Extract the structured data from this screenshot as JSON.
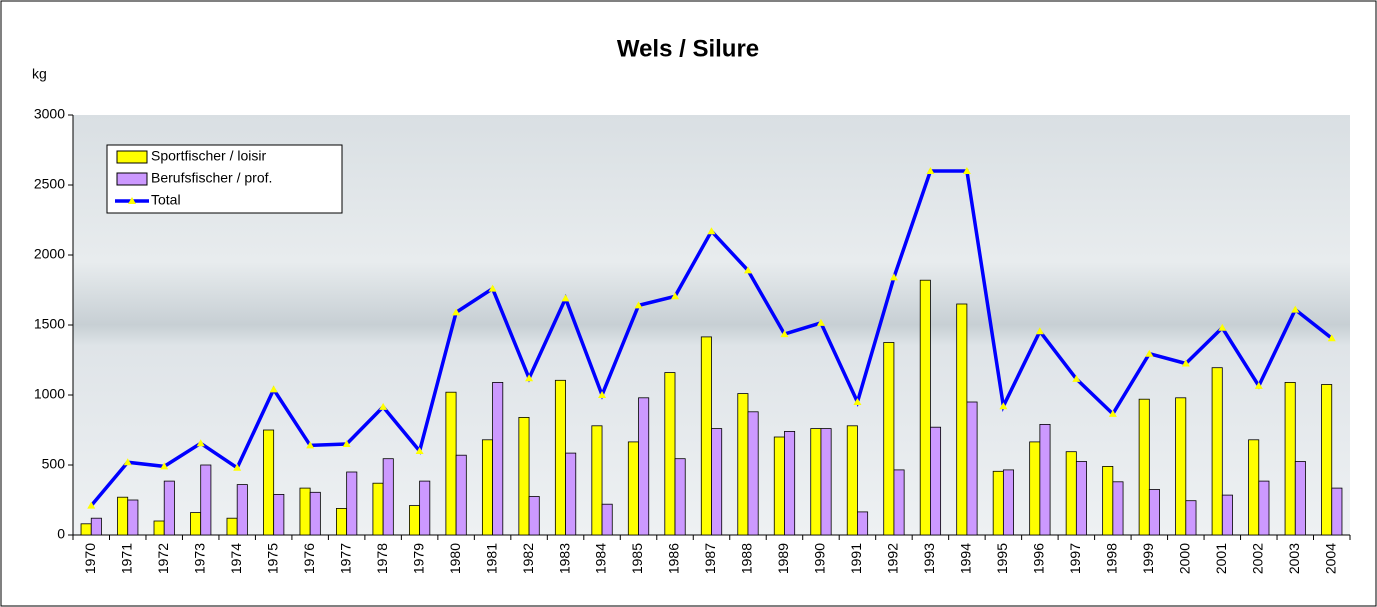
{
  "chart_data": {
    "type": "bar",
    "title": "Wels / Silure",
    "y_label": "kg",
    "categories": [
      "1970",
      "1971",
      "1972",
      "1973",
      "1974",
      "1975",
      "1976",
      "1977",
      "1978",
      "1979",
      "1980",
      "1981",
      "1982",
      "1983",
      "1984",
      "1985",
      "1986",
      "1987",
      "1988",
      "1989",
      "1990",
      "1991",
      "1992",
      "1993",
      "1994",
      "1995",
      "1996",
      "1997",
      "1998",
      "1999",
      "2000",
      "2001",
      "2002",
      "2003",
      "2004"
    ],
    "series": [
      {
        "name": "Sportfischer / loisir",
        "color": "#ffff00",
        "kind": "bar",
        "values": [
          80,
          270,
          100,
          160,
          120,
          750,
          335,
          190,
          370,
          210,
          1020,
          680,
          840,
          1105,
          780,
          665,
          1160,
          1415,
          1010,
          700,
          760,
          780,
          1375,
          1820,
          1650,
          455,
          665,
          595,
          490,
          970,
          980,
          1195,
          680,
          1090,
          1075
        ]
      },
      {
        "name": "Berufsfischer / prof.",
        "color": "#cc99ff",
        "kind": "bar",
        "values": [
          120,
          250,
          385,
          500,
          360,
          290,
          305,
          450,
          545,
          385,
          570,
          1090,
          275,
          585,
          220,
          980,
          545,
          760,
          880,
          740,
          760,
          165,
          465,
          770,
          950,
          465,
          790,
          525,
          380,
          325,
          245,
          285,
          385,
          525,
          335
        ]
      },
      {
        "name": "Total",
        "color": "#0000ff",
        "marker_color": "#ffff00",
        "kind": "line",
        "values": [
          210,
          520,
          490,
          655,
          480,
          1040,
          640,
          650,
          915,
          600,
          1590,
          1760,
          1120,
          1690,
          1000,
          1640,
          1705,
          2170,
          1890,
          1435,
          1515,
          950,
          1840,
          2600,
          2600,
          920,
          1455,
          1115,
          865,
          1295,
          1225,
          1480,
          1065,
          1610,
          1405
        ]
      }
    ],
    "ylim": [
      0,
      3000
    ],
    "yticks": [
      0,
      500,
      1000,
      1500,
      2000,
      2500,
      3000
    ]
  }
}
